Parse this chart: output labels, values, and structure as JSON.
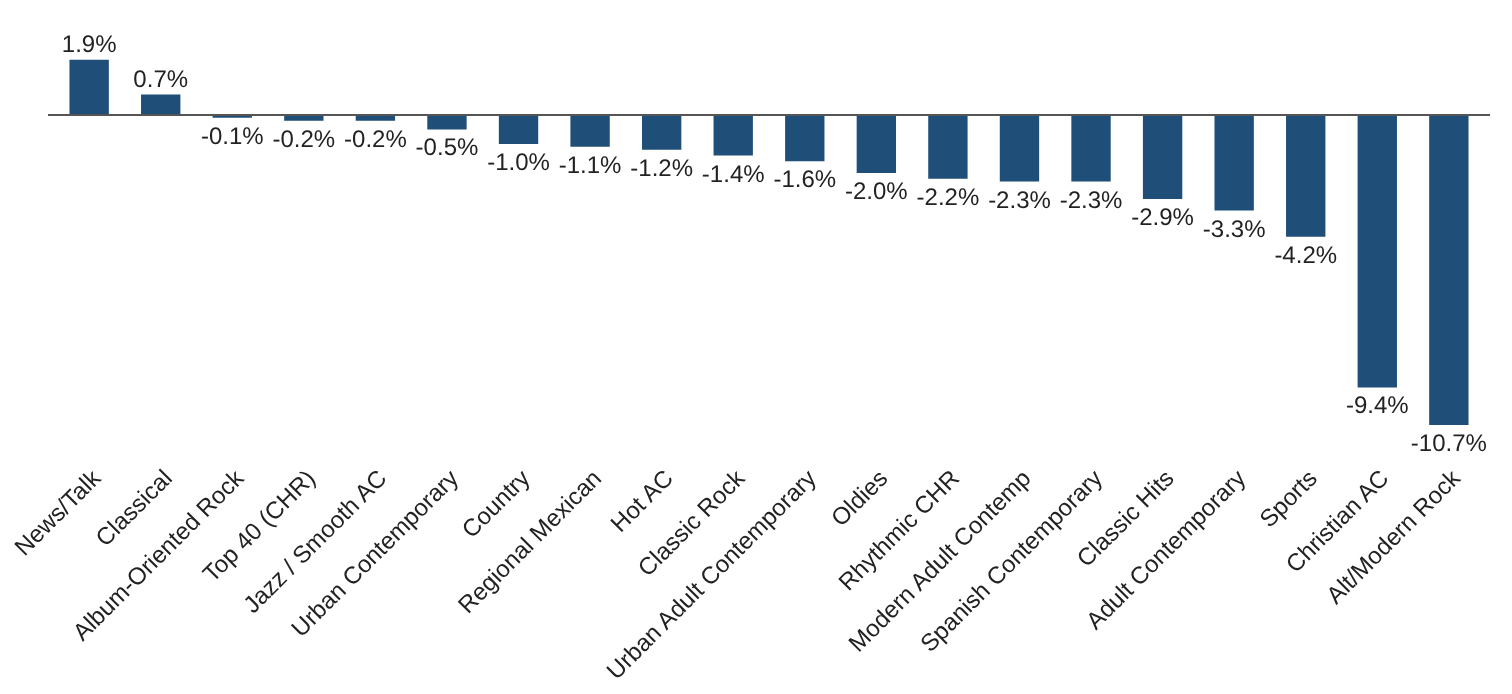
{
  "chart_data": {
    "type": "bar",
    "categories": [
      "News/Talk",
      "Classical",
      "Album-Oriented Rock",
      "Top 40 (CHR)",
      "Jazz / Smooth AC",
      "Urban Contemporary",
      "Country",
      "Regional Mexican",
      "Hot AC",
      "Classic Rock",
      "Urban Adult Contemporary",
      "Oldies",
      "Rhythmic CHR",
      "Modern Adult Contemp",
      "Spanish Contemporary",
      "Classic Hits",
      "Adult Contemporary",
      "Sports",
      "Christian AC",
      "Alt/Modern Rock"
    ],
    "values": [
      1.9,
      0.7,
      -0.1,
      -0.2,
      -0.2,
      -0.5,
      -1.0,
      -1.1,
      -1.2,
      -1.4,
      -1.6,
      -2.0,
      -2.2,
      -2.3,
      -2.3,
      -2.9,
      -3.3,
      -4.2,
      -9.4,
      -10.7
    ],
    "value_labels": [
      "1.9%",
      "0.7%",
      "-0.1%",
      "-0.2%",
      "-0.2%",
      "-0.5%",
      "-1.0%",
      "-1.1%",
      "-1.2%",
      "-1.4%",
      "-1.6%",
      "-2.0%",
      "-2.2%",
      "-2.3%",
      "-2.3%",
      "-2.9%",
      "-3.3%",
      "-4.2%",
      "-9.4%",
      "-10.7%"
    ],
    "color": "#1f4e79",
    "grid": false,
    "tick_labels": "x"
  }
}
